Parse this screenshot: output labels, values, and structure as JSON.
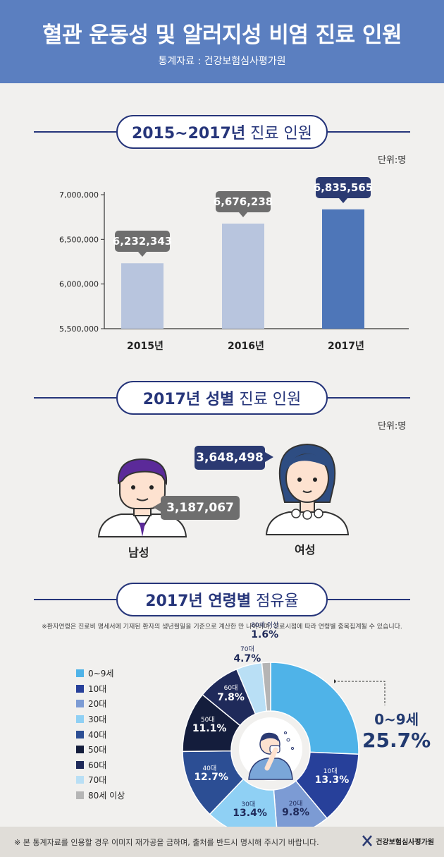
{
  "header": {
    "title": "혈관 운동성 및 알러지성 비염 진료 인원",
    "source": "통계자료 : 건강보험심사평가원"
  },
  "sections": {
    "bar": {
      "bold": "2015~2017년",
      "normal": "진료 인원"
    },
    "gender": {
      "bold": "2017년 성별",
      "normal": "진료 인원"
    },
    "age": {
      "bold": "2017년 연령별",
      "normal": "점유율"
    }
  },
  "unit_label": "단위:명",
  "colors": {
    "header": "#5b7fc0",
    "navy": "#26357a",
    "bar_light": "#b8c5de",
    "bar_dark": "#4e76b8",
    "callout_gray": "#6e6e6e",
    "callout_dark": "#2b3a72",
    "male_hair": "#5b2a99",
    "female_hair": "#2e4d82"
  },
  "chart_data": [
    {
      "type": "bar",
      "categories": [
        "2015년",
        "2016년",
        "2017년"
      ],
      "values": [
        6232343,
        6676238,
        6835565
      ],
      "value_labels": [
        "6,232,343",
        "6,676,238",
        "6,835,565"
      ],
      "yticks": [
        "7,000,000",
        "6,500,000",
        "6,000,000",
        "5,500,000"
      ],
      "ytick_values": [
        7000000,
        6500000,
        6000000,
        5500000
      ],
      "ylim": [
        5500000,
        7000000
      ],
      "highlight_index": 2
    },
    {
      "type": "pie",
      "categories": [
        "0~9세",
        "10대",
        "20대",
        "30대",
        "40대",
        "50대",
        "60대",
        "70대",
        "80세 이상"
      ],
      "values": [
        25.7,
        13.3,
        9.8,
        13.4,
        12.7,
        11.1,
        7.8,
        4.7,
        1.6
      ],
      "value_labels": [
        "25.7%",
        "13.3%",
        "9.8%",
        "13.4%",
        "12.7%",
        "11.1%",
        "7.8%",
        "4.7%",
        "1.6%"
      ],
      "colors": [
        "#4fb3e8",
        "#27409a",
        "#7c9bd4",
        "#8fd0f4",
        "#2c4e94",
        "#141d3c",
        "#1f2a5a",
        "#b9dff5",
        "#b5b5b5"
      ]
    }
  ],
  "gender": {
    "male": {
      "label": "남성",
      "value": "3,187,067"
    },
    "female": {
      "label": "여성",
      "value": "3,648,498"
    }
  },
  "age_note": "※환자연령은 진료비 명세서에 기재된 환자의 생년월일을 기준으로 계산한 만 나이이며, 진료시점에 따라 연령별 중복집계될 수 있습니다.",
  "footer": {
    "text": "※ 본 통계자료를 인용할 경우 이미지 재가공을 금하며, 출처를 반드시 명시해 주시기 바랍니다.",
    "logo_text": "건강보험심사평가원"
  }
}
